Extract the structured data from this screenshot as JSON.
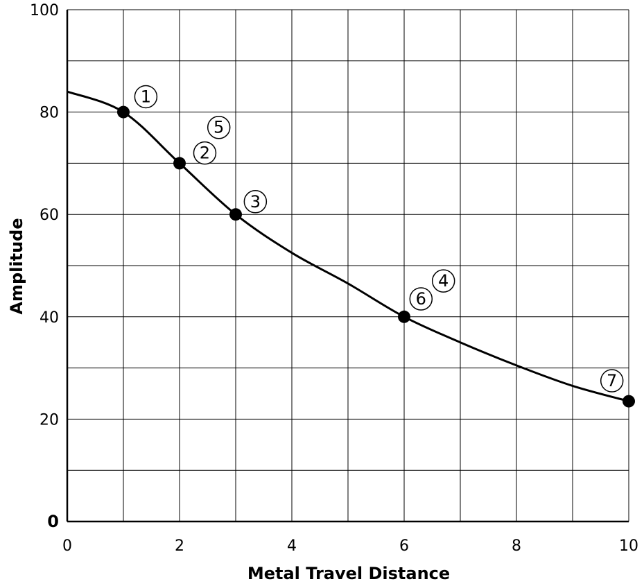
{
  "chart_data": {
    "type": "line",
    "xlabel": "Metal Travel Distance",
    "ylabel": "Amplitude",
    "xlim": [
      0,
      10
    ],
    "ylim": [
      0,
      100
    ],
    "x_ticks": [
      "0",
      "2",
      "4",
      "6",
      "8",
      "10"
    ],
    "y_ticks": [
      "0",
      "20",
      "40",
      "60",
      "80",
      "100"
    ],
    "grid": true,
    "curve": {
      "x": [
        0,
        1,
        2,
        3,
        4,
        5,
        6,
        7,
        8,
        9,
        10
      ],
      "y": [
        84,
        80,
        70,
        60,
        52.5,
        46.5,
        40,
        35,
        30.5,
        26.5,
        23.5
      ]
    },
    "markers": {
      "x": [
        1,
        2,
        3,
        6,
        10
      ],
      "y": [
        80,
        70,
        60,
        40,
        23.5
      ]
    },
    "annotations": [
      {
        "text": "1",
        "x": 1.4,
        "y": 83
      },
      {
        "text": "5",
        "x": 2.7,
        "y": 77
      },
      {
        "text": "2",
        "x": 2.45,
        "y": 72
      },
      {
        "text": "3",
        "x": 3.35,
        "y": 62.5
      },
      {
        "text": "4",
        "x": 6.7,
        "y": 47
      },
      {
        "text": "6",
        "x": 6.3,
        "y": 43.5
      },
      {
        "text": "7",
        "x": 9.7,
        "y": 27.5
      }
    ]
  }
}
